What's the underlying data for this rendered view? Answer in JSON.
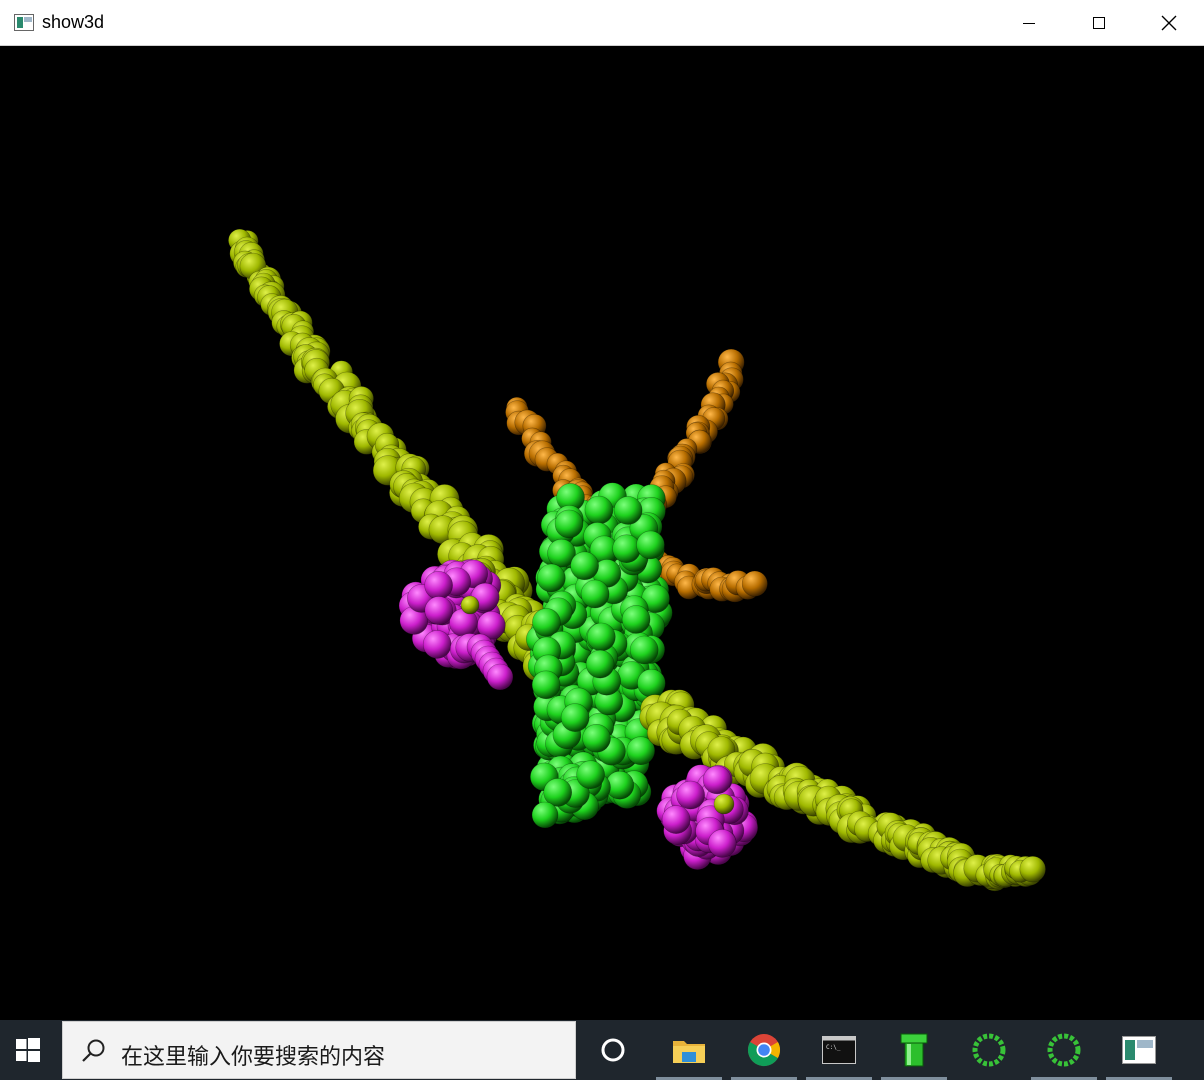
{
  "window": {
    "title": "show3d",
    "icon": "app-window-icon",
    "controls": [
      "minimize-icon",
      "maximize-icon",
      "close-icon"
    ]
  },
  "scene": {
    "description_colors": {
      "background": "#000000",
      "fuselage": "#22dd22",
      "wings": "#a9c000",
      "engines": "#cc22cc",
      "tail": "#c47a00"
    }
  },
  "taskbar": {
    "start_icon": "windows-start-icon",
    "search": {
      "placeholder": "在这里输入你要搜索的内容",
      "icon": "search-icon"
    },
    "apps": [
      {
        "name": "cortana-icon"
      },
      {
        "name": "file-explorer-icon"
      },
      {
        "name": "chrome-icon"
      },
      {
        "name": "command-prompt-icon"
      },
      {
        "name": "green-pipe-icon"
      },
      {
        "name": "green-ring-icon"
      },
      {
        "name": "green-ring-icon-2"
      },
      {
        "name": "show3d-taskbar-icon"
      }
    ],
    "background": "#1f262d"
  }
}
